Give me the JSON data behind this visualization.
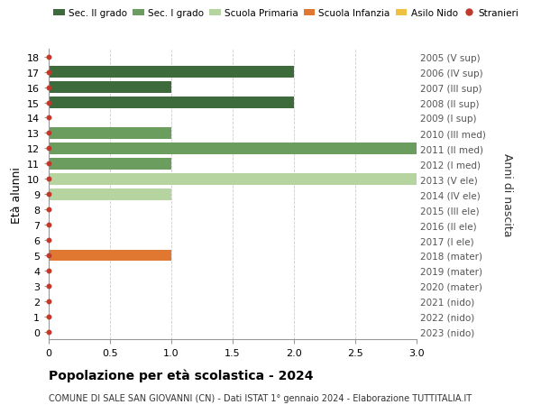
{
  "ages": [
    18,
    17,
    16,
    15,
    14,
    13,
    12,
    11,
    10,
    9,
    8,
    7,
    6,
    5,
    4,
    3,
    2,
    1,
    0
  ],
  "right_labels": [
    "2005 (V sup)",
    "2006 (IV sup)",
    "2007 (III sup)",
    "2008 (II sup)",
    "2009 (I sup)",
    "2010 (III med)",
    "2011 (II med)",
    "2012 (I med)",
    "2013 (V ele)",
    "2014 (IV ele)",
    "2015 (III ele)",
    "2016 (II ele)",
    "2017 (I ele)",
    "2018 (mater)",
    "2019 (mater)",
    "2020 (mater)",
    "2021 (nido)",
    "2022 (nido)",
    "2023 (nido)"
  ],
  "bar_data": [
    {
      "age": 17,
      "value": 2.0,
      "color": "#3d6b3c"
    },
    {
      "age": 16,
      "value": 1.0,
      "color": "#3d6b3c"
    },
    {
      "age": 15,
      "value": 2.0,
      "color": "#3d6b3c"
    },
    {
      "age": 13,
      "value": 1.0,
      "color": "#6b9e5e"
    },
    {
      "age": 12,
      "value": 3.0,
      "color": "#6b9e5e"
    },
    {
      "age": 11,
      "value": 1.0,
      "color": "#6b9e5e"
    },
    {
      "age": 10,
      "value": 3.0,
      "color": "#b5d4a0"
    },
    {
      "age": 9,
      "value": 1.0,
      "color": "#b5d4a0"
    },
    {
      "age": 5,
      "value": 1.0,
      "color": "#e07832"
    }
  ],
  "dot_ages": [
    18,
    17,
    16,
    15,
    14,
    13,
    12,
    11,
    10,
    9,
    8,
    7,
    6,
    5,
    4,
    3,
    2,
    1,
    0
  ],
  "dot_color": "#c0392b",
  "legend": [
    {
      "label": "Sec. II grado",
      "color": "#3d6b3c",
      "type": "patch"
    },
    {
      "label": "Sec. I grado",
      "color": "#6b9e5e",
      "type": "patch"
    },
    {
      "label": "Scuola Primaria",
      "color": "#b5d4a0",
      "type": "patch"
    },
    {
      "label": "Scuola Infanzia",
      "color": "#e07832",
      "type": "patch"
    },
    {
      "label": "Asilo Nido",
      "color": "#f0c040",
      "type": "patch"
    },
    {
      "label": "Stranieri",
      "color": "#c0392b",
      "type": "dot"
    }
  ],
  "ylabel_left": "Età alunni",
  "ylabel_right": "Anni di nascita",
  "xlim": [
    0,
    3.0
  ],
  "xticks": [
    0,
    0.5,
    1.0,
    1.5,
    2.0,
    2.5,
    3.0
  ],
  "xtick_labels": [
    "0",
    "0.5",
    "1.0",
    "1.5",
    "2.0",
    "2.5",
    "3.0"
  ],
  "title": "Popolazione per età scolastica - 2024",
  "subtitle": "COMUNE DI SALE SAN GIOVANNI (CN) - Dati ISTAT 1° gennaio 2024 - Elaborazione TUTTITALIA.IT",
  "grid_color": "#cccccc",
  "bg_color": "#ffffff",
  "bar_height": 0.75
}
